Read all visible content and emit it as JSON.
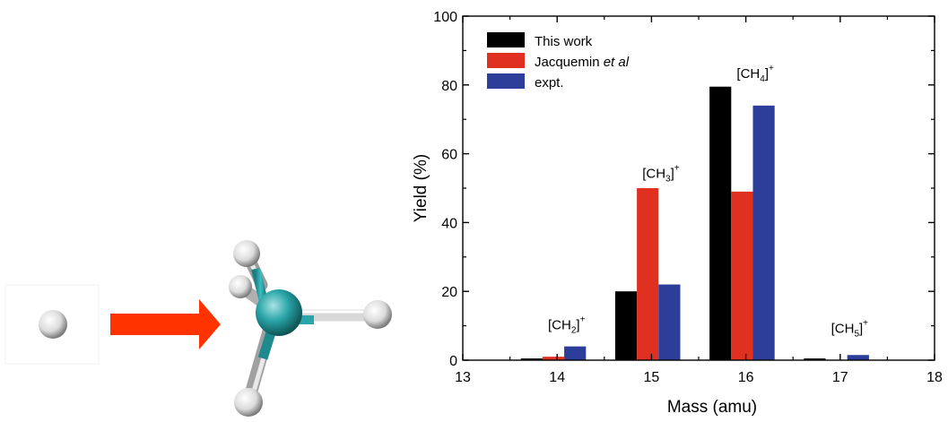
{
  "chart_data": {
    "type": "bar",
    "xlabel": "Mass (amu)",
    "ylabel": "Yield (%)",
    "xlim": [
      13,
      18
    ],
    "ylim": [
      0,
      100
    ],
    "x_ticks": [
      13,
      14,
      15,
      16,
      17,
      18
    ],
    "y_ticks": [
      0,
      20,
      40,
      60,
      80,
      100
    ],
    "grid": false,
    "legend_position": "top-left",
    "categories": [
      14,
      15,
      16,
      17
    ],
    "series": [
      {
        "name": "This work",
        "name_parts": [
          "This work",
          ""
        ],
        "color": "#000000",
        "values": [
          0.5,
          20,
          79.5,
          0.5
        ]
      },
      {
        "name": "Jacquemin et al",
        "name_parts": [
          "Jacquemin ",
          "et al"
        ],
        "color": "#e03020",
        "values": [
          1,
          50,
          49,
          0
        ]
      },
      {
        "name": "expt.",
        "name_parts": [
          "expt.",
          ""
        ],
        "color": "#2c3e9a",
        "values": [
          4,
          22,
          74,
          1.5
        ]
      }
    ],
    "annotations": [
      {
        "base": "[CH",
        "sub": "2",
        "close": "]",
        "sup": "+",
        "x": 14.1,
        "y": 9
      },
      {
        "base": "[CH",
        "sub": "3",
        "close": "]",
        "sup": "+",
        "x": 15.1,
        "y": 53
      },
      {
        "base": "[CH",
        "sub": "4",
        "close": "]",
        "sup": "+",
        "x": 16.1,
        "y": 82
      },
      {
        "base": "[CH",
        "sub": "5",
        "close": "]",
        "sup": "+",
        "x": 17.1,
        "y": 8
      }
    ]
  },
  "illustration": {
    "reaction_arrow_color": "#ff3300",
    "carbon_atom_color": "#2aa5a8",
    "hydrogen_atom_color": "#dddddd"
  }
}
